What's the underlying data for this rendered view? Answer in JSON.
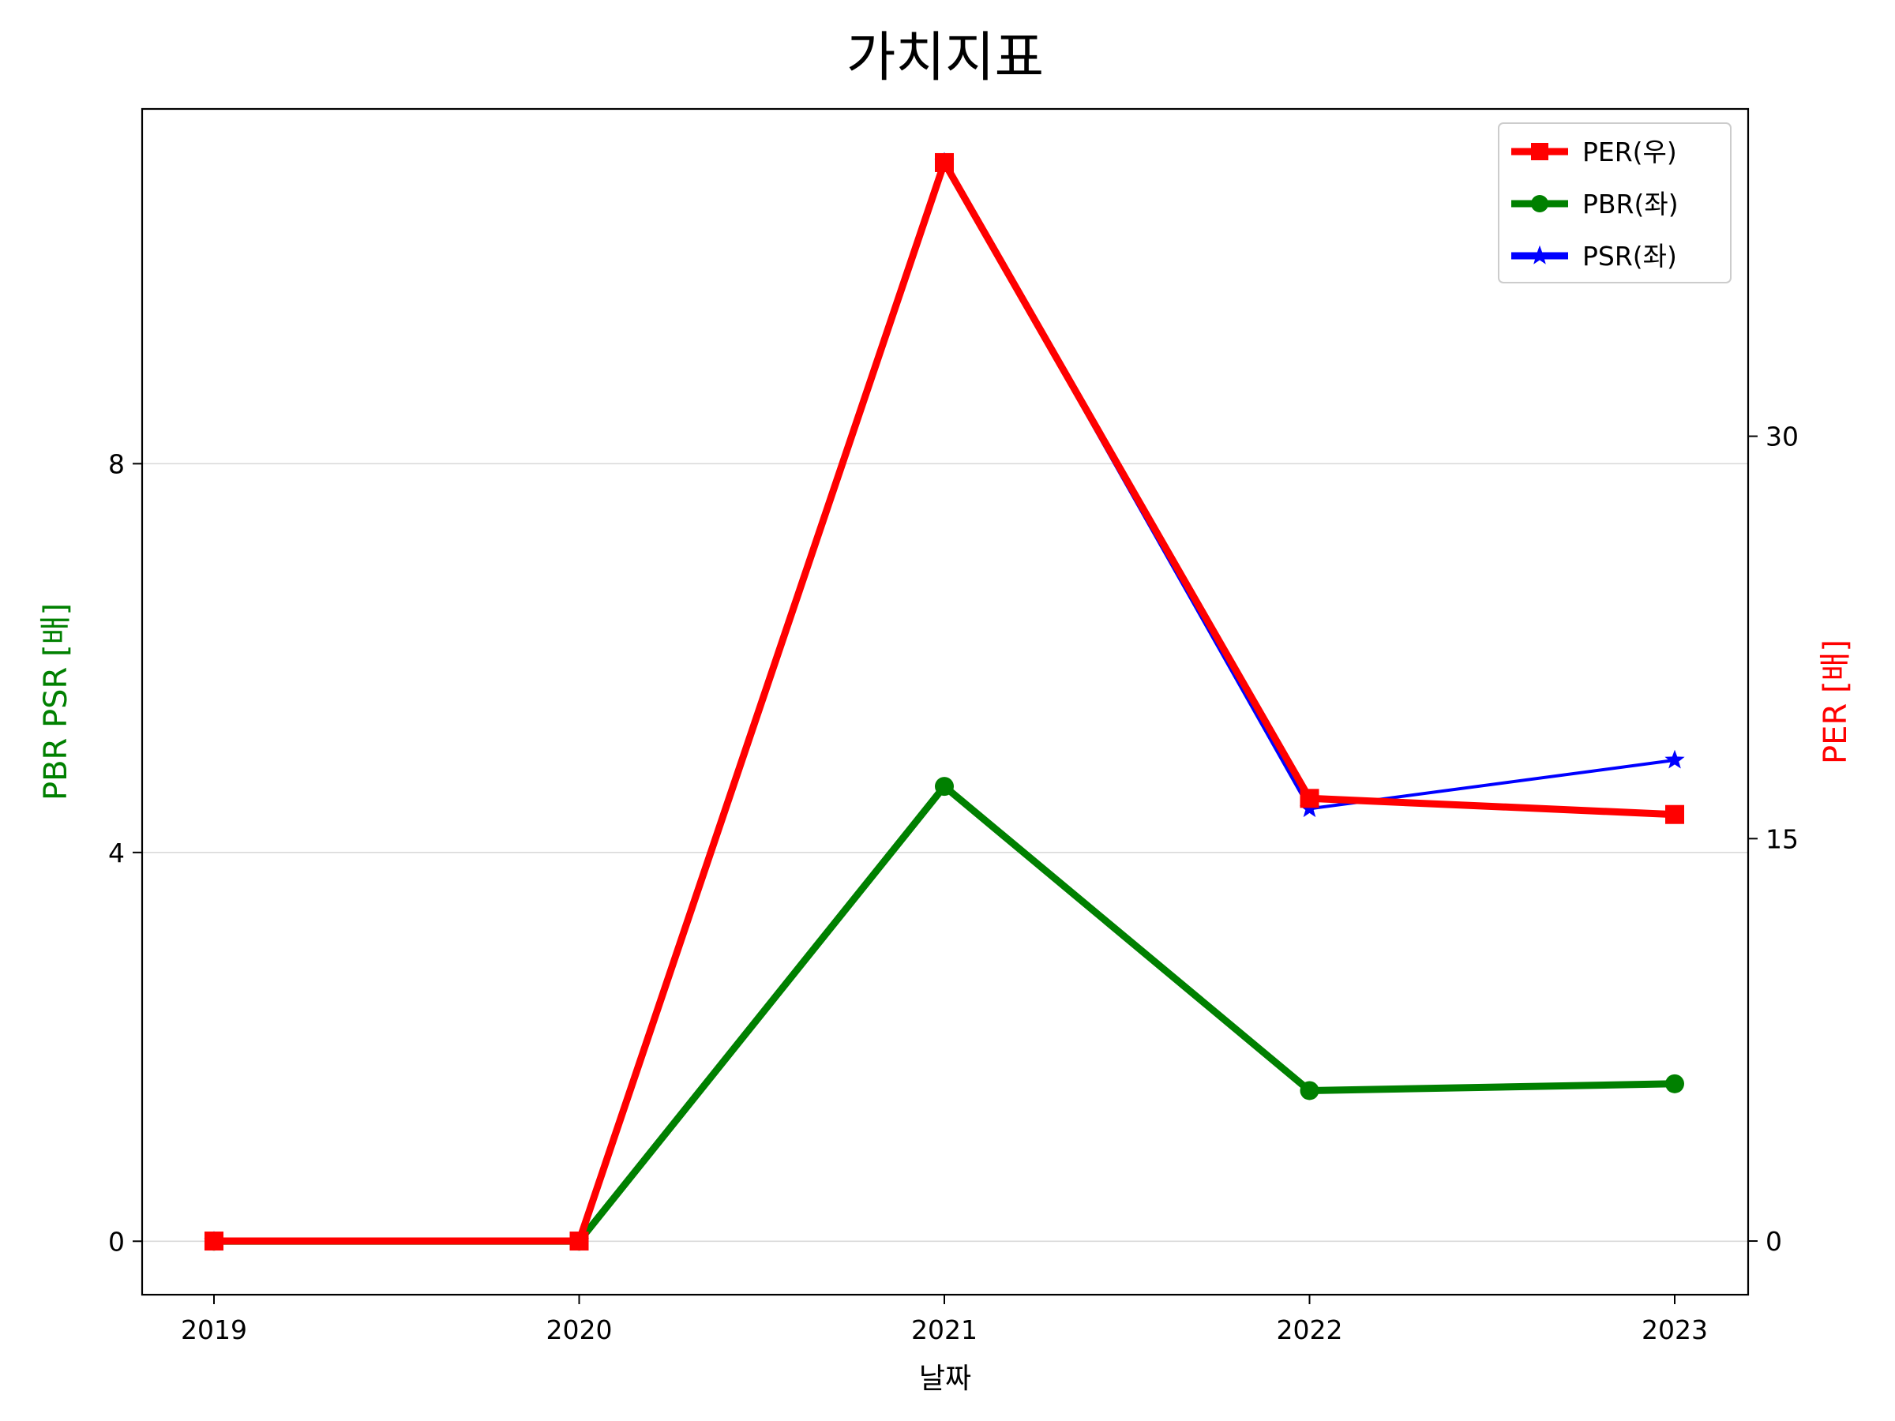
{
  "chart_data": {
    "type": "line",
    "title": "가치지표",
    "xlabel": "날짜",
    "ylabel_left": "PBR PSR [배]",
    "ylabel_right": "PER [배]",
    "categories": [
      "2019",
      "2020",
      "2021",
      "2022",
      "2023"
    ],
    "y_left": {
      "ticks": [
        0,
        4,
        8
      ],
      "lim": [
        -0.55,
        11.65
      ]
    },
    "y_right": {
      "ticks": [
        0,
        15,
        30
      ],
      "lim": [
        -2.0,
        42.2
      ]
    },
    "grid": true,
    "legend_position": "top-right",
    "series": [
      {
        "name": "PER(우)",
        "axis": "right",
        "marker": "square",
        "color": "#ff0000",
        "values": [
          0,
          0,
          40.2,
          16.5,
          15.9
        ]
      },
      {
        "name": "PBR(좌)",
        "axis": "left",
        "marker": "circle",
        "color": "#008000",
        "values": [
          0,
          0,
          4.68,
          1.55,
          1.62
        ]
      },
      {
        "name": "PSR(좌)",
        "axis": "left",
        "marker": "star",
        "color": "#0000ff",
        "values": [
          0,
          0,
          11.1,
          4.45,
          4.95
        ]
      }
    ],
    "colors": {
      "left_axis_label": "#008000",
      "right_axis_label": "#ff0000"
    }
  }
}
